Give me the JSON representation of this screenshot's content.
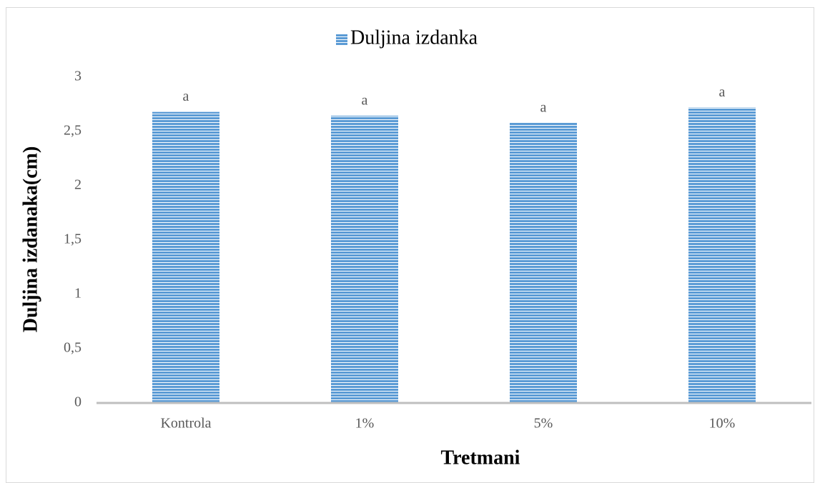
{
  "chart_data": {
    "type": "bar",
    "legend": "top",
    "series": [
      {
        "name": "Duljina izdanka",
        "color": "#5b9bd5",
        "values": [
          2.68,
          2.645,
          2.58,
          2.72
        ]
      }
    ],
    "categories": [
      "Kontrola",
      "1%",
      "5%",
      "10%"
    ],
    "annotations": [
      "a",
      "a",
      "a",
      "a"
    ],
    "y_label": "Duljina izdanaka(cm)",
    "x_label": "Tretmani",
    "ylim": [
      0,
      3
    ],
    "yticks": [
      0,
      {
        "value": 0.5,
        "label": "0,5"
      },
      1,
      {
        "value": 1.5,
        "label": "1,5"
      },
      2,
      {
        "value": 2.5,
        "label": "2,5"
      },
      3
    ],
    "grid": false
  }
}
